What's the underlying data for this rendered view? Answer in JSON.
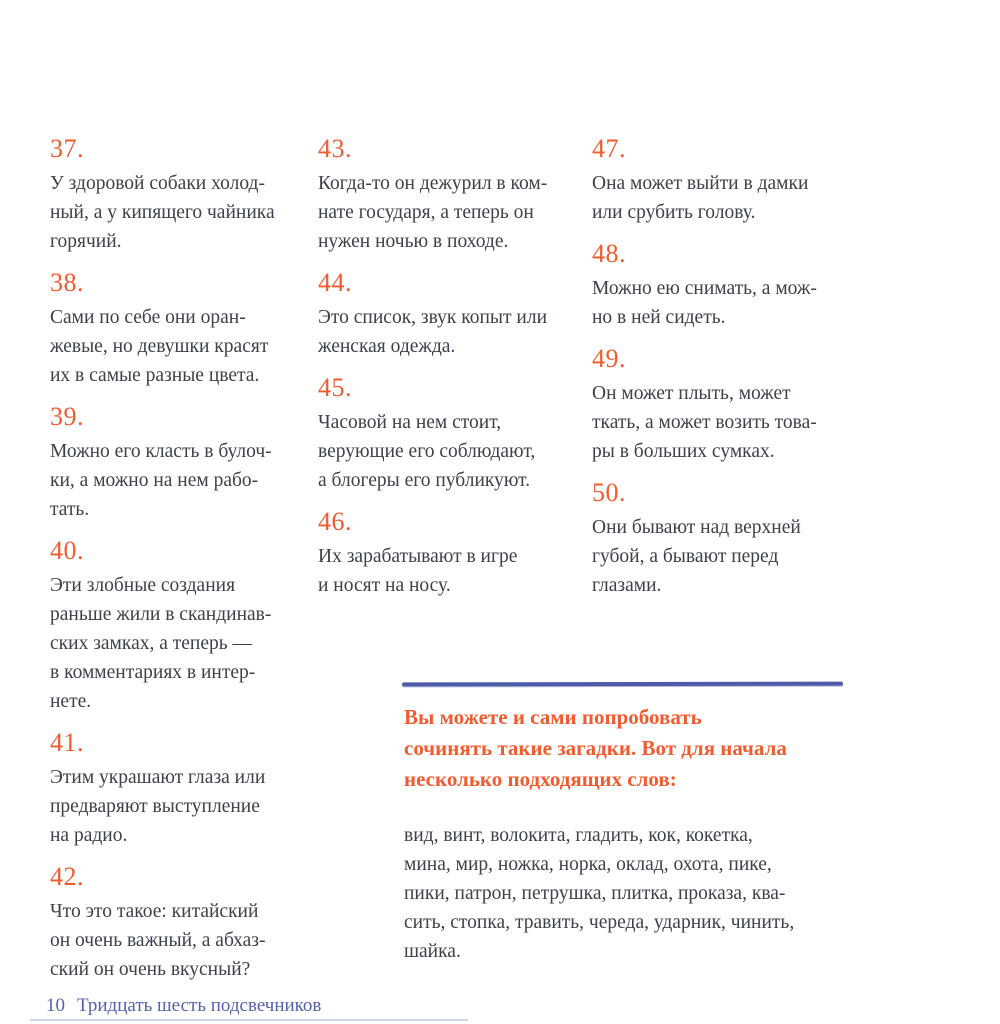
{
  "colors": {
    "accent_orange": "#F15B2E",
    "accent_blue": "#4D5BA8",
    "footer_blue": "#5561AE",
    "body_text": "#3C424A"
  },
  "columns": [
    {
      "riddles": [
        {
          "num": "37.",
          "text": "У здоровой собаки холод-\nный, а у кипящего чайника\nгорячий."
        },
        {
          "num": "38.",
          "text": "Сами по себе они оран-\nжевые, но девушки красят\nих в самые разные цвета."
        },
        {
          "num": "39.",
          "text": "Можно его класть в булоч-\nки, а можно на нем рабо-\nтать."
        },
        {
          "num": "40.",
          "text": "Эти злобные создания\nраньше жили в скандинав-\nских замках, а теперь —\nв комментариях в интер-\nнете."
        },
        {
          "num": "41.",
          "text": "Этим украшают глаза или\nпредваряют выступление\nна радио."
        },
        {
          "num": "42.",
          "text": "Что это такое: китайский\nон очень важный, а абхаз-\nский он очень вкусный?"
        }
      ]
    },
    {
      "riddles": [
        {
          "num": "43.",
          "text": "Когда-то он дежурил в ком-\nнате государя, а теперь он\nнужен ночью в походе."
        },
        {
          "num": "44.",
          "text": "Это список, звук копыт или\nженская одежда."
        },
        {
          "num": "45.",
          "text": "Часовой на нем стоит,\nверующие его соблюдают,\nа блогеры его публикуют."
        },
        {
          "num": "46.",
          "text": "Их зарабатывают в игре\nи носят на носу."
        }
      ]
    },
    {
      "riddles": [
        {
          "num": "47.",
          "text": "Она может выйти в дамки\nили срубить голову."
        },
        {
          "num": "48.",
          "text": "Можно ею снимать, а мож-\nно в ней сидеть."
        },
        {
          "num": "49.",
          "text": "Он может плыть, может\nткать, а может возить това-\nры в больших сумках."
        },
        {
          "num": "50.",
          "text": "Они бывают над верхней\nгубой, а бывают перед\nглазами."
        }
      ]
    }
  ],
  "callout": {
    "heading": "Вы можете и сами попробовать\nсочинять такие загадки. Вот для начала\nнесколько подходящих слов:",
    "words": "вид, винт, волокита, гладить, кок, кокетка,\nмина, мир, ножка, норка, оклад, охота, пике,\nпики, патрон, петрушка, плитка, проказа, ква-\nсить, стопка, травить, череда, ударник, чинить,\nшайка."
  },
  "footer": {
    "page_number": "10",
    "book_title": "Тридцать шесть подсвечников"
  }
}
